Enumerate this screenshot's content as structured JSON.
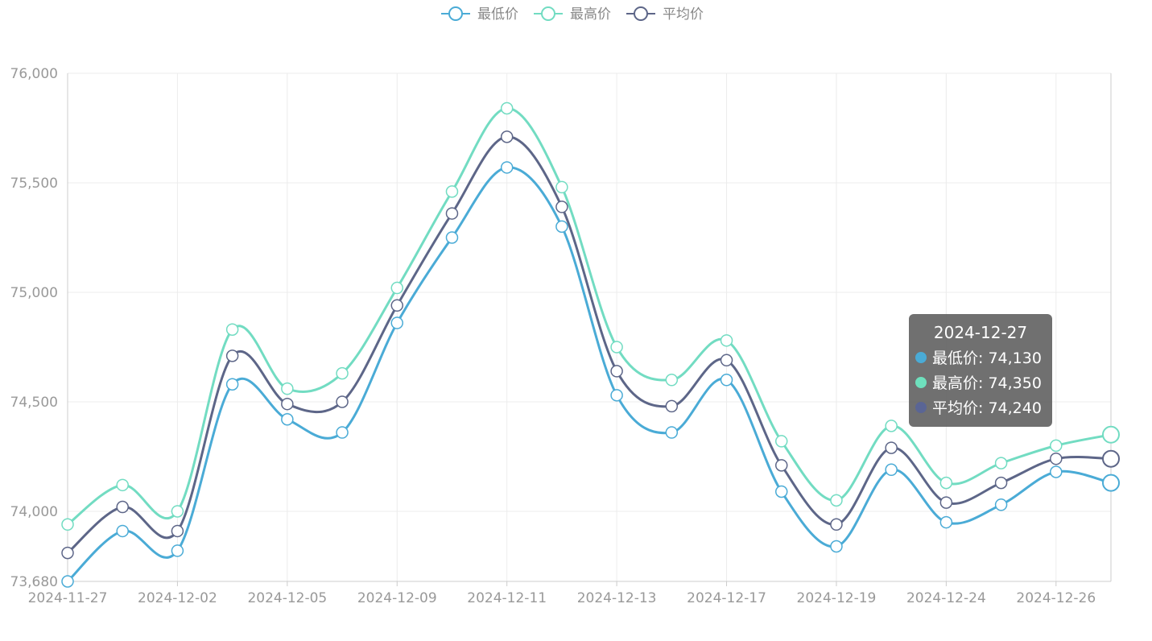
{
  "chart_data": {
    "type": "line",
    "title": "",
    "xlabel": "",
    "ylabel": "",
    "x": [
      "2024-11-27",
      "2024-11-28",
      "2024-12-02",
      "2024-12-03",
      "2024-12-05",
      "2024-12-06",
      "2024-12-09",
      "2024-12-10",
      "2024-12-11",
      "2024-12-12",
      "2024-12-13",
      "2024-12-16",
      "2024-12-17",
      "2024-12-18",
      "2024-12-19",
      "2024-12-20",
      "2024-12-24",
      "2024-12-25",
      "2024-12-26",
      "2024-12-27"
    ],
    "x_tick_labels": [
      "2024-11-27",
      "2024-12-02",
      "2024-12-05",
      "2024-12-09",
      "2024-12-11",
      "2024-12-13",
      "2024-12-17",
      "2024-12-19",
      "2024-12-24",
      "2024-12-26"
    ],
    "y_ticks": [
      73680,
      74000,
      74500,
      75000,
      75500,
      76000
    ],
    "y_tick_labels": [
      "73,680",
      "74,000",
      "74,500",
      "75,000",
      "75,500",
      "76,000"
    ],
    "ylim": [
      73680,
      76000
    ],
    "grid": true,
    "smooth": true,
    "legend_position": "top-center",
    "series": [
      {
        "name": "最低价",
        "color": "#4aabd6",
        "values": [
          73680,
          73910,
          73820,
          74580,
          74420,
          74360,
          74860,
          75250,
          75570,
          75300,
          74530,
          74360,
          74600,
          74090,
          73840,
          74190,
          73950,
          74030,
          74180,
          74130
        ]
      },
      {
        "name": "最高价",
        "color": "#72dcc2",
        "values": [
          73940,
          74120,
          74000,
          74830,
          74560,
          74630,
          75020,
          75460,
          75840,
          75480,
          74750,
          74600,
          74780,
          74320,
          74050,
          74390,
          74130,
          74220,
          74300,
          74350
        ]
      },
      {
        "name": "平均价",
        "color": "#5d6688",
        "values": [
          73810,
          74020,
          73910,
          74710,
          74490,
          74500,
          74940,
          75360,
          75710,
          75390,
          74640,
          74480,
          74690,
          74210,
          73940,
          74290,
          74040,
          74130,
          74240,
          74240
        ]
      }
    ],
    "tooltip": {
      "title": "2024-12-27",
      "rows": [
        {
          "label": "最低价: 74,130",
          "color": "#4aabd6"
        },
        {
          "label": "最高价: 74,350",
          "color": "#6ee0bd"
        },
        {
          "label": "平均价: 74,240",
          "color": "#5a6595"
        }
      ]
    }
  }
}
